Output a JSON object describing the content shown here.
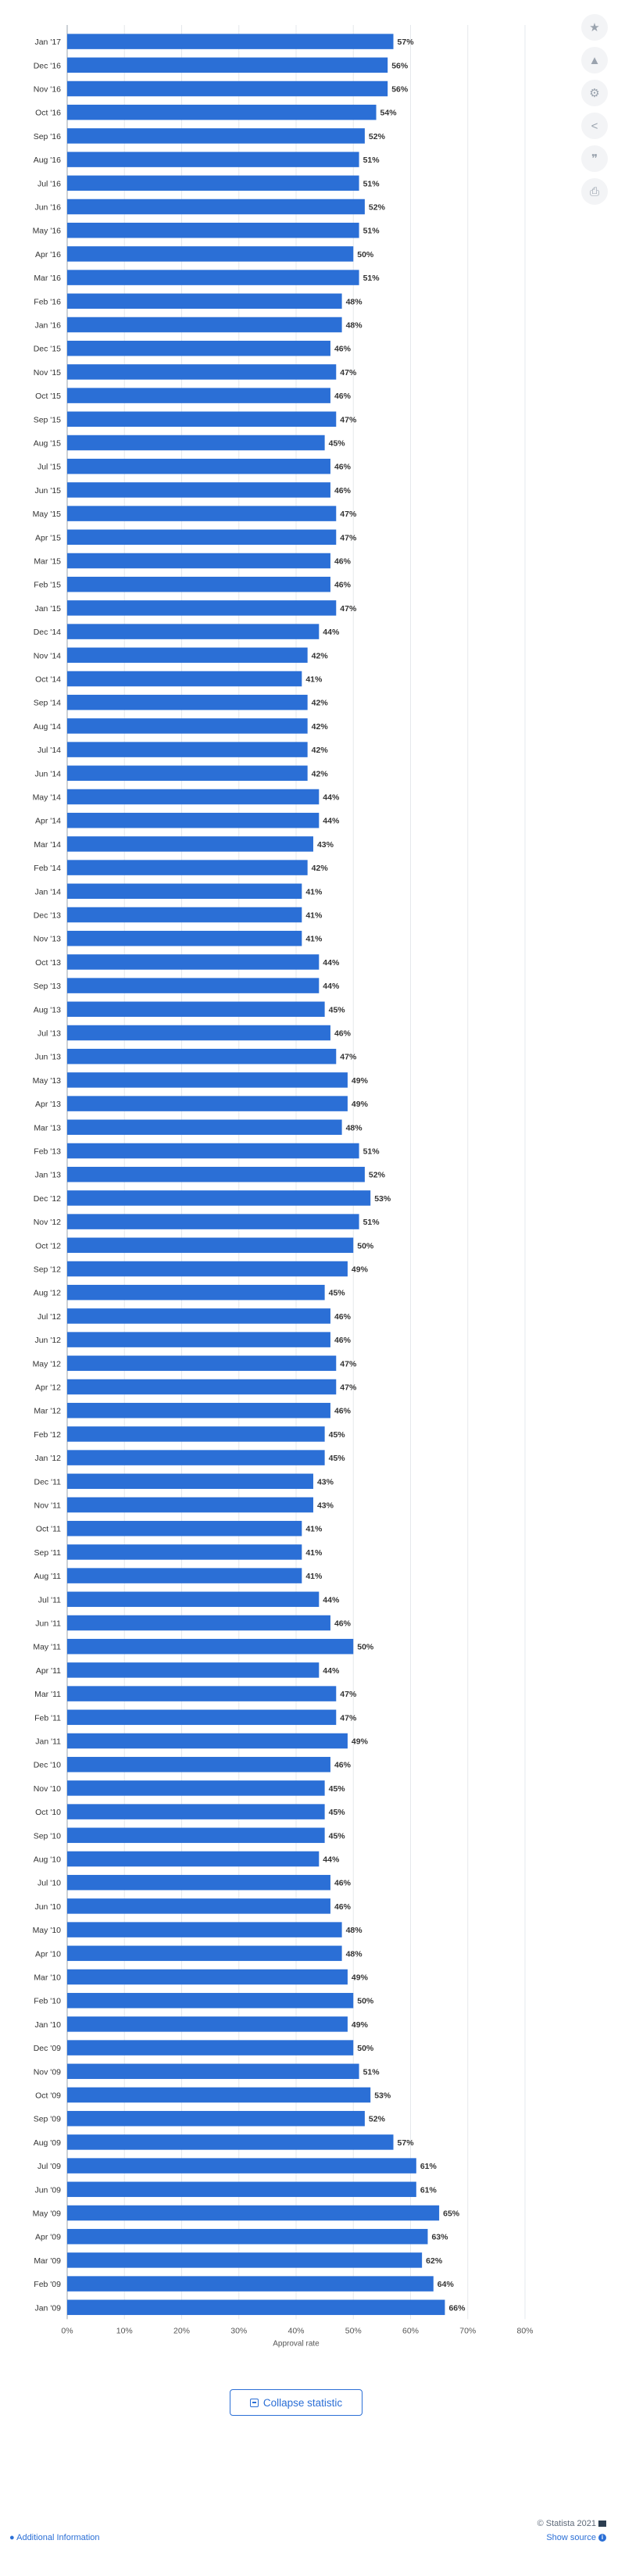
{
  "chart_data": {
    "type": "bar",
    "orientation": "horizontal",
    "categories": [
      "Jan '17",
      "Dec '16",
      "Nov '16",
      "Oct '16",
      "Sep '16",
      "Aug '16",
      "Jul '16",
      "Jun '16",
      "May '16",
      "Apr '16",
      "Mar '16",
      "Feb '16",
      "Jan '16",
      "Dec '15",
      "Nov '15",
      "Oct '15",
      "Sep '15",
      "Aug '15",
      "Jul '15",
      "Jun '15",
      "May '15",
      "Apr '15",
      "Mar '15",
      "Feb '15",
      "Jan '15",
      "Dec '14",
      "Nov '14",
      "Oct '14",
      "Sep '14",
      "Aug '14",
      "Jul '14",
      "Jun '14",
      "May '14",
      "Apr '14",
      "Mar '14",
      "Feb '14",
      "Jan '14",
      "Dec '13",
      "Nov '13",
      "Oct '13",
      "Sep '13",
      "Aug '13",
      "Jul '13",
      "Jun '13",
      "May '13",
      "Apr '13",
      "Mar '13",
      "Feb '13",
      "Jan '13",
      "Dec '12",
      "Nov '12",
      "Oct '12",
      "Sep '12",
      "Aug '12",
      "Jul '12",
      "Jun '12",
      "May '12",
      "Apr '12",
      "Mar '12",
      "Feb '12",
      "Jan '12",
      "Dec '11",
      "Nov '11",
      "Oct '11",
      "Sep '11",
      "Aug '11",
      "Jul '11",
      "Jun '11",
      "May '11",
      "Apr '11",
      "Mar '11",
      "Feb '11",
      "Jan '11",
      "Dec '10",
      "Nov '10",
      "Oct '10",
      "Sep '10",
      "Aug '10",
      "Jul '10",
      "Jun '10",
      "May '10",
      "Apr '10",
      "Mar '10",
      "Feb '10",
      "Jan '10",
      "Dec '09",
      "Nov '09",
      "Oct '09",
      "Sep '09",
      "Aug '09",
      "Jul '09",
      "Jun '09",
      "May '09",
      "Apr '09",
      "Mar '09",
      "Feb '09",
      "Jan '09"
    ],
    "values": [
      57,
      56,
      56,
      54,
      52,
      51,
      51,
      52,
      51,
      50,
      51,
      48,
      48,
      46,
      47,
      46,
      47,
      45,
      46,
      46,
      47,
      47,
      46,
      46,
      47,
      44,
      42,
      41,
      42,
      42,
      42,
      42,
      44,
      44,
      43,
      42,
      41,
      41,
      41,
      44,
      44,
      45,
      46,
      47,
      49,
      49,
      48,
      51,
      52,
      53,
      51,
      50,
      49,
      45,
      46,
      46,
      47,
      47,
      46,
      45,
      45,
      43,
      43,
      41,
      41,
      41,
      44,
      46,
      50,
      44,
      47,
      47,
      49,
      46,
      45,
      45,
      45,
      44,
      46,
      46,
      48,
      48,
      49,
      50,
      49,
      50,
      51,
      53,
      52,
      57,
      61,
      61,
      65,
      63,
      62,
      64,
      66
    ],
    "value_suffix": "%",
    "xlabel": "Approval rate",
    "ylabel": "",
    "xlim": [
      0,
      80
    ],
    "ticks": [
      "0%",
      "10%",
      "20%",
      "30%",
      "40%",
      "50%",
      "60%",
      "70%",
      "80%"
    ],
    "grid": true,
    "bar_color": "#2b6fd6"
  },
  "sidebar_icons": [
    "star-icon",
    "bell-icon",
    "gear-icon",
    "share-icon",
    "quote-icon",
    "print-icon"
  ],
  "sidebar_glyphs": [
    "★",
    "🔔",
    "⚙",
    "<",
    "❞",
    "⎙"
  ],
  "actions": {
    "collapse_label": "Collapse statistic"
  },
  "footer": {
    "additional_info": "Additional Information",
    "credit": "© Statista 2021",
    "show_source": "Show source"
  },
  "colors": {
    "accent": "#2b6fd6",
    "grid": "#e5e8ec",
    "text": "#333333"
  }
}
